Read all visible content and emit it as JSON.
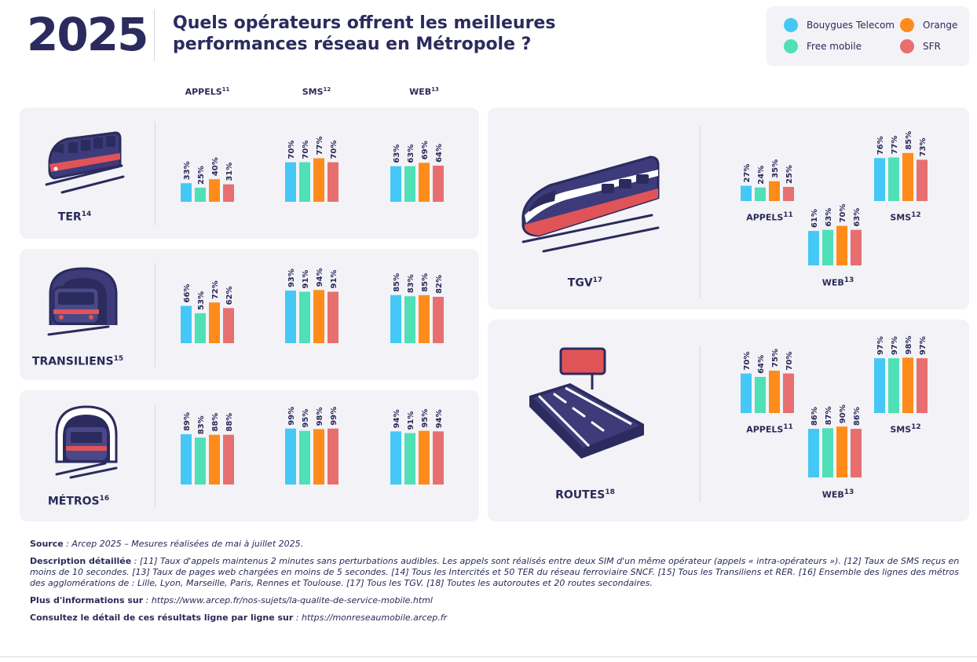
{
  "header": {
    "year": "2025",
    "title": "Quels opérateurs offrent les meilleures performances réseau en Métropole ?"
  },
  "legend": [
    {
      "name": "Bouygues Telecom",
      "color": "#45c8f5"
    },
    {
      "name": "Orange",
      "color": "#ff8c1a"
    },
    {
      "name": "Free mobile",
      "color": "#4fe0b8"
    },
    {
      "name": "SFR",
      "color": "#e86f70"
    }
  ],
  "columns": [
    {
      "label": "APPELS",
      "note": "11"
    },
    {
      "label": "SMS",
      "note": "12"
    },
    {
      "label": "WEB",
      "note": "13"
    }
  ],
  "chart_data": [
    {
      "type": "bar",
      "context": "TER",
      "note": "14",
      "operators": [
        "Bouygues Telecom",
        "Free mobile",
        "Orange",
        "SFR"
      ],
      "groups": [
        {
          "label": "APPELS",
          "note": "11",
          "values": [
            33,
            25,
            40,
            31
          ]
        },
        {
          "label": "SMS",
          "note": "12",
          "values": [
            70,
            70,
            77,
            70
          ]
        },
        {
          "label": "WEB",
          "note": "13",
          "values": [
            63,
            63,
            69,
            64
          ]
        }
      ]
    },
    {
      "type": "bar",
      "context": "TRANSILIENS",
      "note": "15",
      "operators": [
        "Bouygues Telecom",
        "Free mobile",
        "Orange",
        "SFR"
      ],
      "groups": [
        {
          "label": "APPELS",
          "note": "11",
          "values": [
            66,
            53,
            72,
            62
          ]
        },
        {
          "label": "SMS",
          "note": "12",
          "values": [
            93,
            91,
            94,
            91
          ]
        },
        {
          "label": "WEB",
          "note": "13",
          "values": [
            85,
            83,
            85,
            82
          ]
        }
      ]
    },
    {
      "type": "bar",
      "context": "MÉTROS",
      "note": "16",
      "operators": [
        "Bouygues Telecom",
        "Free mobile",
        "Orange",
        "SFR"
      ],
      "groups": [
        {
          "label": "APPELS",
          "note": "11",
          "values": [
            89,
            83,
            88,
            88
          ]
        },
        {
          "label": "SMS",
          "note": "12",
          "values": [
            99,
            95,
            98,
            99
          ]
        },
        {
          "label": "WEB",
          "note": "13",
          "values": [
            94,
            91,
            95,
            94
          ]
        }
      ]
    },
    {
      "type": "bar",
      "context": "TGV",
      "note": "17",
      "operators": [
        "Bouygues Telecom",
        "Free mobile",
        "Orange",
        "SFR"
      ],
      "groups": [
        {
          "label": "APPELS",
          "note": "11",
          "values": [
            27,
            24,
            35,
            25
          ]
        },
        {
          "label": "SMS",
          "note": "12",
          "values": [
            76,
            77,
            85,
            73
          ]
        },
        {
          "label": "WEB",
          "note": "13",
          "values": [
            61,
            63,
            70,
            63
          ]
        }
      ]
    },
    {
      "type": "bar",
      "context": "ROUTES",
      "note": "18",
      "operators": [
        "Bouygues Telecom",
        "Free mobile",
        "Orange",
        "SFR"
      ],
      "groups": [
        {
          "label": "APPELS",
          "note": "11",
          "values": [
            70,
            64,
            75,
            70
          ]
        },
        {
          "label": "SMS",
          "note": "12",
          "values": [
            97,
            97,
            98,
            97
          ]
        },
        {
          "label": "WEB",
          "note": "13",
          "values": [
            86,
            87,
            90,
            86
          ]
        }
      ]
    }
  ],
  "footer": {
    "source_label": "Source",
    "source_text": " : Arcep 2025 – Mesures réalisées de mai à juillet 2025.",
    "desc_label": "Description détaillée",
    "desc_text": " : [11] Taux d'appels maintenus 2 minutes sans perturbations audibles. Les appels sont réalisés entre deux SIM d'un même opérateur (appels « intra-opérateurs »). [12] Taux de SMS reçus en moins de 10 secondes. [13] Taux de pages web chargées en moins de 5 secondes. [14] Tous les Intercités et 50 TER du réseau ferroviaire SNCF. [15] Tous les Transiliens et RER. [16] Ensemble des lignes des métros des agglomérations de : Lille, Lyon, Marseille, Paris, Rennes et Toulouse. [17] Tous les TGV. [18] Toutes les autoroutes et 20 routes secondaires.",
    "more_label": "Plus d'informations sur",
    "more_text": " : https://www.arcep.fr/nos-sujets/la-qualite-de-service-mobile.html",
    "detail_label": "Consultez le détail de ces résultats ligne par ligne sur",
    "detail_text": " : https://monreseaumobile.arcep.fr"
  }
}
